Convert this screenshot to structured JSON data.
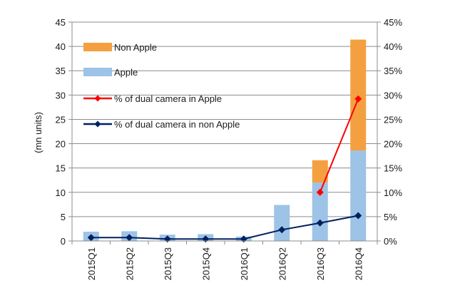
{
  "chart_data": {
    "type": "bar",
    "stacked": true,
    "categories": [
      "2015Q1",
      "2015Q2",
      "2015Q3",
      "2015Q4",
      "2016Q1",
      "2016Q2",
      "2016Q3",
      "2016Q4"
    ],
    "ylabel": "(mn units)",
    "ylim": [
      0,
      45
    ],
    "y_ticks": [
      "0",
      "5",
      "10",
      "15",
      "20",
      "25",
      "30",
      "35",
      "40",
      "45"
    ],
    "y2lim": [
      0,
      45
    ],
    "y2_ticks": [
      "0%",
      "5%",
      "10%",
      "15%",
      "20%",
      "25%",
      "30%",
      "35%",
      "40%",
      "45%"
    ],
    "grid": true,
    "legend_position": "top-left",
    "series": [
      {
        "name": "Apple",
        "kind": "bar",
        "color": "#9DC3E6",
        "values": [
          1.9,
          2.0,
          1.3,
          1.4,
          0.9,
          7.4,
          12.0,
          18.6
        ]
      },
      {
        "name": "Non Apple",
        "kind": "bar",
        "color": "#F4A040",
        "values": [
          0,
          0,
          0,
          0,
          0,
          0,
          4.6,
          22.8
        ]
      },
      {
        "name": "% of dual camera in Apple",
        "kind": "line",
        "axis": "right",
        "color": "#FF0000",
        "marker": "diamond",
        "values": [
          null,
          null,
          null,
          null,
          null,
          null,
          10.0,
          29.2
        ]
      },
      {
        "name": "% of dual camera in non Apple",
        "kind": "line",
        "axis": "right",
        "color": "#002060",
        "marker": "diamond",
        "values": [
          0.7,
          0.7,
          0.4,
          0.4,
          0.4,
          2.3,
          3.7,
          5.2
        ]
      }
    ]
  }
}
